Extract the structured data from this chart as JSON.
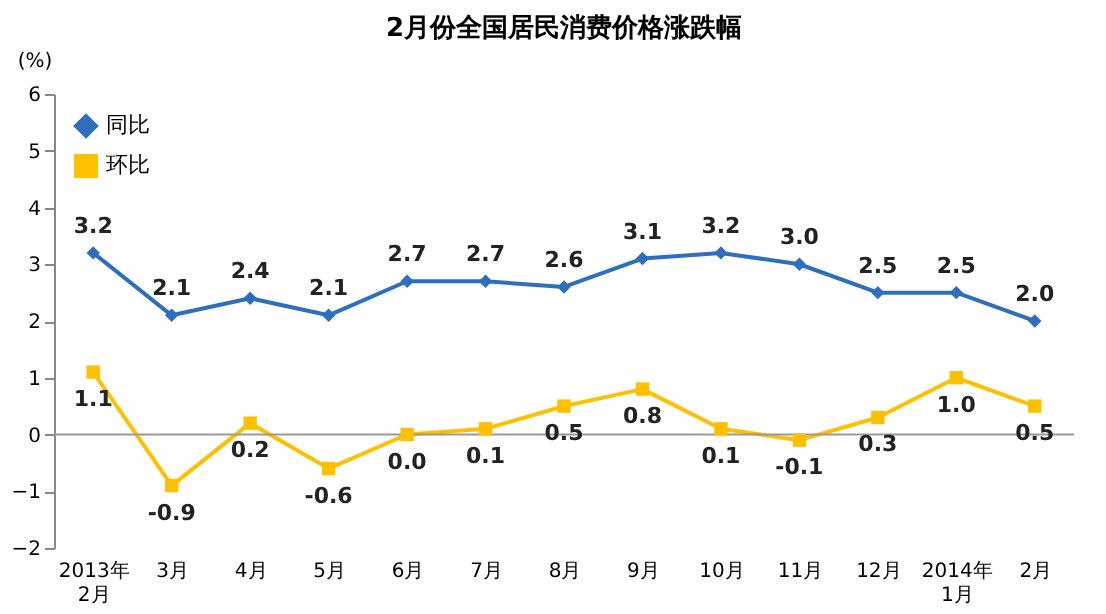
{
  "chart_data": {
    "type": "line",
    "title": "2月份全国居民消费价格涨跌幅",
    "ylabel": "(%)",
    "categories": [
      "2013年\n2月",
      "3月",
      "4月",
      "5月",
      "6月",
      "7月",
      "8月",
      "9月",
      "10月",
      "11月",
      "12月",
      "2014年\n1月",
      "2月"
    ],
    "series": [
      {
        "name": "同比",
        "color": "#2e6fbd",
        "marker": "diamond",
        "values": [
          3.2,
          2.1,
          2.4,
          2.1,
          2.7,
          2.7,
          2.6,
          3.1,
          3.2,
          3.0,
          2.5,
          2.5,
          2.0
        ],
        "value_labels": [
          "3.2",
          "2.1",
          "2.4",
          "2.1",
          "2.7",
          "2.7",
          "2.6",
          "3.1",
          "3.2",
          "3.0",
          "2.5",
          "2.5",
          "2.0"
        ]
      },
      {
        "name": "环比",
        "color": "#ffc000",
        "marker": "square",
        "values": [
          1.1,
          -0.9,
          0.2,
          -0.6,
          0.0,
          0.1,
          0.5,
          0.8,
          0.1,
          -0.1,
          0.3,
          1.0,
          0.5
        ],
        "value_labels": [
          "1.1",
          "-0.9",
          "0.2",
          "-0.6",
          "0.0",
          "0.1",
          "0.5",
          "0.8",
          "0.1",
          "-0.1",
          "0.3",
          "1.0",
          "0.5"
        ]
      }
    ],
    "line_style": "solid",
    "ylim": [
      -2,
      6
    ],
    "yticks": [
      -2,
      -1,
      0,
      1,
      2,
      3,
      4,
      5,
      6
    ],
    "grid": false,
    "legend": "top left",
    "ref_lines": [
      {
        "axis": "y",
        "value": 0,
        "color": "#999999"
      }
    ]
  }
}
